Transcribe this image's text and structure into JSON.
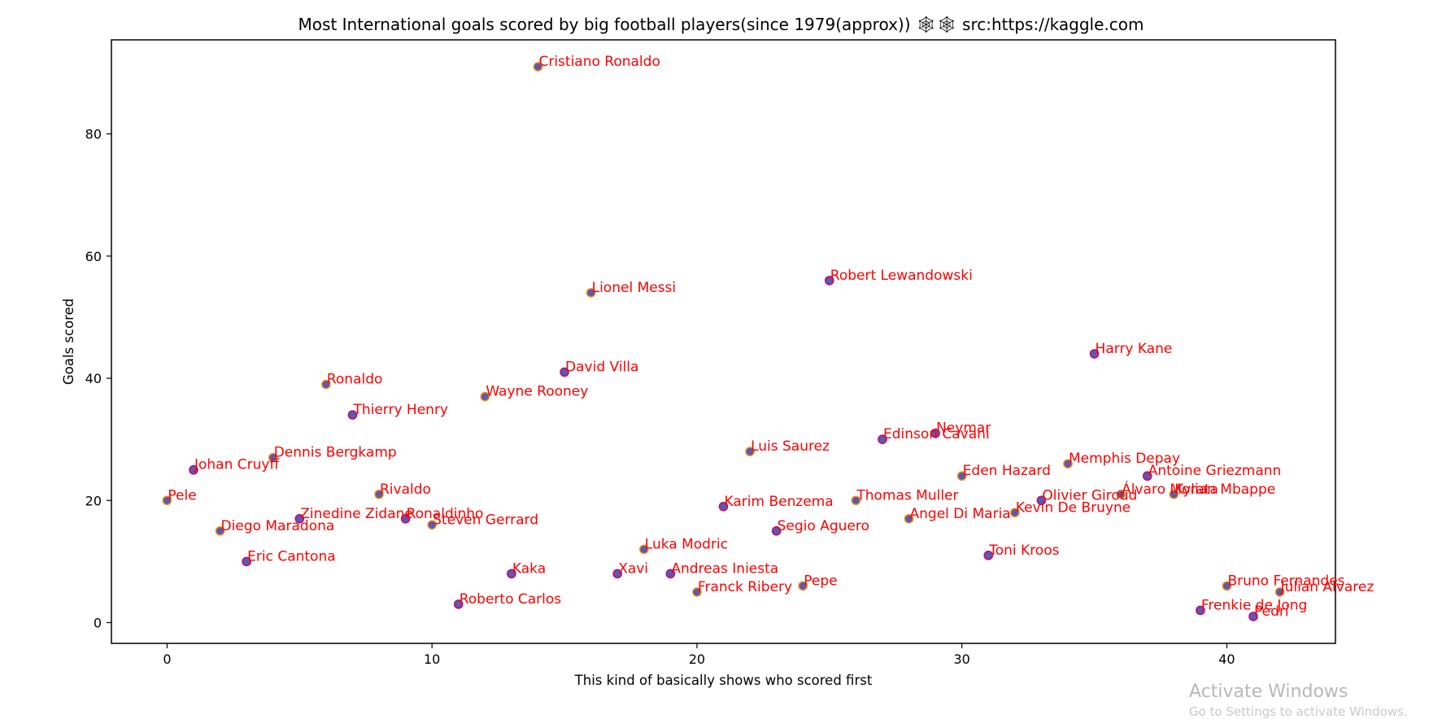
{
  "chart_data": {
    "type": "scatter",
    "title": "Most International goals scored by big football players(since 1979(approx)) 🕸🕸 src:https://kaggle.com",
    "xlabel": "This kind of basically shows who scored first",
    "ylabel": "Goals scored",
    "xlim": [
      -2.1,
      44.1
    ],
    "ylim": [
      -3.4,
      95.4
    ],
    "xticks": [
      0,
      10,
      20,
      30,
      40
    ],
    "yticks": [
      0,
      20,
      40,
      60,
      80
    ],
    "grid": false,
    "label_color": "#ff0000",
    "points": [
      {
        "label": "Pele",
        "x": 0,
        "y": 20,
        "fill": "#ff8c00"
      },
      {
        "label": "Johan Cruyff",
        "x": 1,
        "y": 25,
        "fill": "#cc0066"
      },
      {
        "label": "Diego Maradona",
        "x": 2,
        "y": 15,
        "fill": "#ff8c00"
      },
      {
        "label": "Eric Cantona",
        "x": 3,
        "y": 10,
        "fill": "#cc0066"
      },
      {
        "label": "Dennis Bergkamp",
        "x": 4,
        "y": 27,
        "fill": "#ff8c00"
      },
      {
        "label": "Zinedine Zidane",
        "x": 5,
        "y": 17,
        "fill": "#cc0066"
      },
      {
        "label": "Ronaldo",
        "x": 6,
        "y": 39,
        "fill": "#ff8c00"
      },
      {
        "label": "Thierry Henry",
        "x": 7,
        "y": 34,
        "fill": "#cc0066"
      },
      {
        "label": "Rivaldo",
        "x": 8,
        "y": 21,
        "fill": "#ff8c00"
      },
      {
        "label": "Ronaldinho",
        "x": 9,
        "y": 17,
        "fill": "#cc0066"
      },
      {
        "label": "Steven Gerrard",
        "x": 10,
        "y": 16,
        "fill": "#ff8c00"
      },
      {
        "label": "Roberto Carlos",
        "x": 11,
        "y": 3,
        "fill": "#cc0066"
      },
      {
        "label": "Wayne Rooney",
        "x": 12,
        "y": 37,
        "fill": "#ff8c00"
      },
      {
        "label": "Kaka",
        "x": 13,
        "y": 8,
        "fill": "#cc0066"
      },
      {
        "label": "Cristiano Ronaldo",
        "x": 14,
        "y": 91,
        "fill": "#ff8c00"
      },
      {
        "label": "David Villa",
        "x": 15,
        "y": 41,
        "fill": "#cc0066"
      },
      {
        "label": "Lionel Messi",
        "x": 16,
        "y": 54,
        "fill": "#ff8c00"
      },
      {
        "label": "Xavi",
        "x": 17,
        "y": 8,
        "fill": "#cc0066"
      },
      {
        "label": "Luka Modric",
        "x": 18,
        "y": 12,
        "fill": "#ff8c00"
      },
      {
        "label": "Andreas Iniesta",
        "x": 19,
        "y": 8,
        "fill": "#cc0066"
      },
      {
        "label": "Franck Ribery",
        "x": 20,
        "y": 5,
        "fill": "#ff8c00"
      },
      {
        "label": "Karim Benzema",
        "x": 21,
        "y": 19,
        "fill": "#cc0066"
      },
      {
        "label": "Luis Saurez",
        "x": 22,
        "y": 28,
        "fill": "#ff8c00"
      },
      {
        "label": "Segio Aguero",
        "x": 23,
        "y": 15,
        "fill": "#cc0066"
      },
      {
        "label": "Pepe",
        "x": 24,
        "y": 6,
        "fill": "#ff8c00"
      },
      {
        "label": "Robert Lewandowski",
        "x": 25,
        "y": 56,
        "fill": "#cc0066"
      },
      {
        "label": "Thomas Muller",
        "x": 26,
        "y": 20,
        "fill": "#ff8c00"
      },
      {
        "label": "Edinson Cavani",
        "x": 27,
        "y": 30,
        "fill": "#cc0066"
      },
      {
        "label": "Angel Di Maria",
        "x": 28,
        "y": 17,
        "fill": "#ff8c00"
      },
      {
        "label": "Neymar",
        "x": 29,
        "y": 31,
        "fill": "#cc0066"
      },
      {
        "label": "Eden Hazard",
        "x": 30,
        "y": 24,
        "fill": "#ff8c00"
      },
      {
        "label": "Toni Kroos",
        "x": 31,
        "y": 11,
        "fill": "#cc0066"
      },
      {
        "label": "Kevin De Bruyne",
        "x": 32,
        "y": 18,
        "fill": "#ff8c00"
      },
      {
        "label": "Olivier Giroud",
        "x": 33,
        "y": 20,
        "fill": "#cc0066"
      },
      {
        "label": "Memphis Depay",
        "x": 34,
        "y": 26,
        "fill": "#ff8c00"
      },
      {
        "label": "Harry Kane",
        "x": 35,
        "y": 44,
        "fill": "#cc0066"
      },
      {
        "label": "Álvaro Morata",
        "x": 36,
        "y": 21,
        "fill": "#ff8c00"
      },
      {
        "label": "Antoine Griezmann",
        "x": 37,
        "y": 24,
        "fill": "#cc0066"
      },
      {
        "label": "Kylian Mbappe",
        "x": 38,
        "y": 21,
        "fill": "#ff8c00"
      },
      {
        "label": "Frenkie de Jong",
        "x": 39,
        "y": 2,
        "fill": "#cc0066"
      },
      {
        "label": "Bruno Fernandes",
        "x": 40,
        "y": 6,
        "fill": "#ff8c00"
      },
      {
        "label": "Pedri",
        "x": 41,
        "y": 1,
        "fill": "#cc0066"
      },
      {
        "label": "Julian Alvarez",
        "x": 42,
        "y": 5,
        "fill": "#ff8c00"
      }
    ]
  },
  "watermark": {
    "line1": "Activate Windows",
    "line2": "Go to Settings to activate Windows."
  }
}
